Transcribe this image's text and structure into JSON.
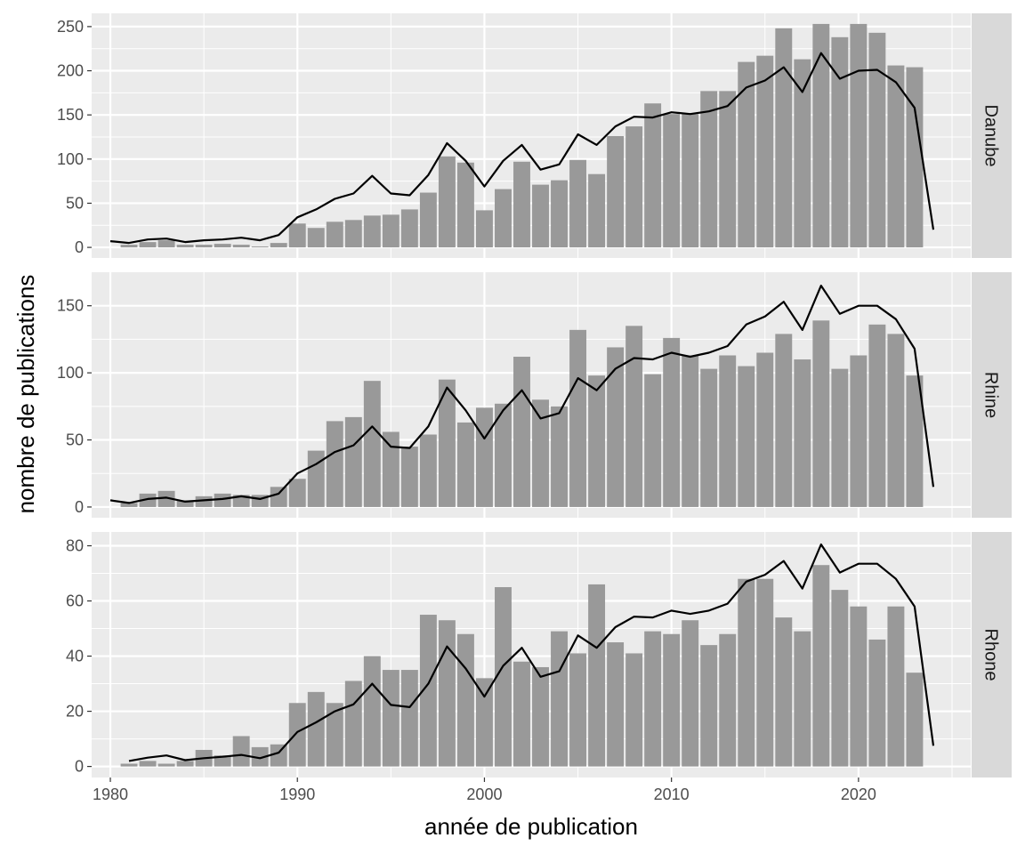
{
  "chart_data": {
    "type": "bar",
    "xlabel": "année de publication",
    "ylabel": "nombre de publications",
    "x_ticks": [
      1980,
      1990,
      2000,
      2010,
      2020
    ],
    "xlim": [
      1979,
      2026
    ],
    "grid": true,
    "facets": [
      {
        "name": "Danube",
        "ylim": [
          -12,
          265
        ],
        "y_ticks": [
          0,
          50,
          100,
          150,
          200,
          250
        ],
        "bars": {
          "x": [
            1981,
            1982,
            1983,
            1984,
            1985,
            1986,
            1987,
            1988,
            1989,
            1990,
            1991,
            1992,
            1993,
            1994,
            1995,
            1996,
            1997,
            1998,
            1999,
            2000,
            2001,
            2002,
            2003,
            2004,
            2005,
            2006,
            2007,
            2008,
            2009,
            2010,
            2011,
            2012,
            2013,
            2014,
            2015,
            2016,
            2017,
            2018,
            2019,
            2020,
            2021,
            2022,
            2023
          ],
          "y": [
            3,
            6,
            8,
            3,
            3,
            4,
            3,
            1,
            5,
            27,
            22,
            29,
            31,
            36,
            37,
            43,
            62,
            103,
            96,
            42,
            66,
            97,
            71,
            76,
            99,
            83,
            126,
            137,
            163,
            151,
            151,
            177,
            177,
            210,
            217,
            248,
            213,
            253,
            238,
            253,
            243,
            206,
            204
          ]
        },
        "line": {
          "x": [
            1980,
            1981,
            1982,
            1983,
            1984,
            1985,
            1986,
            1987,
            1988,
            1989,
            1990,
            1991,
            1992,
            1993,
            1994,
            1995,
            1996,
            1997,
            1998,
            1999,
            2000,
            2001,
            2002,
            2003,
            2004,
            2005,
            2006,
            2007,
            2008,
            2009,
            2010,
            2011,
            2012,
            2013,
            2014,
            2015,
            2016,
            2017,
            2018,
            2019,
            2020,
            2021,
            2022,
            2023,
            2024
          ],
          "y": [
            7,
            5,
            9,
            10,
            6,
            8,
            9,
            11,
            8,
            14,
            34,
            43,
            55,
            61,
            81,
            61,
            59,
            82,
            118,
            98,
            69,
            98,
            116,
            88,
            94,
            128,
            116,
            137,
            148,
            147,
            153,
            151,
            154,
            160,
            181,
            189,
            204,
            176,
            220,
            191,
            200,
            201,
            187,
            158,
            20
          ]
        }
      },
      {
        "name": "Rhine",
        "ylim": [
          -8,
          175
        ],
        "y_ticks": [
          0,
          50,
          100,
          150
        ],
        "bars": {
          "x": [
            1981,
            1982,
            1983,
            1984,
            1985,
            1986,
            1987,
            1988,
            1989,
            1990,
            1991,
            1992,
            1993,
            1994,
            1995,
            1996,
            1997,
            1998,
            1999,
            2000,
            2001,
            2002,
            2003,
            2004,
            2005,
            2006,
            2007,
            2008,
            2009,
            2010,
            2011,
            2012,
            2013,
            2014,
            2015,
            2016,
            2017,
            2018,
            2019,
            2020,
            2021,
            2022,
            2023
          ],
          "y": [
            3,
            10,
            12,
            5,
            8,
            10,
            9,
            9,
            15,
            21,
            42,
            64,
            67,
            94,
            56,
            45,
            54,
            95,
            63,
            74,
            77,
            112,
            80,
            75,
            132,
            98,
            119,
            135,
            99,
            126,
            113,
            103,
            113,
            105,
            115,
            129,
            110,
            139,
            103,
            113,
            136,
            129,
            98
          ]
        },
        "line": {
          "x": [
            1980,
            1981,
            1982,
            1983,
            1984,
            1985,
            1986,
            1987,
            1988,
            1989,
            1990,
            1991,
            1992,
            1993,
            1994,
            1995,
            1996,
            1997,
            1998,
            1999,
            2000,
            2001,
            2002,
            2003,
            2004,
            2005,
            2006,
            2007,
            2008,
            2009,
            2010,
            2011,
            2012,
            2013,
            2014,
            2015,
            2016,
            2017,
            2018,
            2019,
            2020,
            2021,
            2022,
            2023,
            2024
          ],
          "y": [
            5,
            3,
            6,
            7,
            4,
            5,
            6,
            8,
            6,
            10,
            25,
            32,
            41,
            46,
            60,
            45,
            44,
            60,
            89,
            72,
            51,
            72,
            87,
            66,
            70,
            96,
            87,
            103,
            111,
            110,
            115,
            112,
            115,
            120,
            136,
            142,
            153,
            132,
            165,
            144,
            150,
            150,
            140,
            118,
            15
          ]
        }
      },
      {
        "name": "Rhone",
        "ylim": [
          -4,
          85
        ],
        "y_ticks": [
          0,
          20,
          40,
          60,
          80
        ],
        "bars": {
          "x": [
            1981,
            1982,
            1983,
            1984,
            1985,
            1986,
            1987,
            1988,
            1989,
            1990,
            1991,
            1992,
            1993,
            1994,
            1995,
            1996,
            1997,
            1998,
            1999,
            2000,
            2001,
            2002,
            2003,
            2004,
            2005,
            2006,
            2007,
            2008,
            2009,
            2010,
            2011,
            2012,
            2013,
            2014,
            2015,
            2016,
            2017,
            2018,
            2019,
            2020,
            2021,
            2022,
            2023
          ],
          "y": [
            1,
            2,
            1,
            2,
            6,
            4,
            11,
            7,
            8,
            23,
            27,
            23,
            31,
            40,
            35,
            35,
            55,
            53,
            48,
            32,
            65,
            38,
            36,
            49,
            41,
            66,
            45,
            41,
            49,
            48,
            53,
            44,
            48,
            68,
            68,
            54,
            49,
            73,
            64,
            58,
            46,
            58,
            34
          ]
        },
        "line": {
          "x": [
            1981,
            1982,
            1983,
            1984,
            1985,
            1986,
            1987,
            1988,
            1989,
            1990,
            1991,
            1992,
            1993,
            1994,
            1995,
            1996,
            1997,
            1998,
            1999,
            2000,
            2001,
            2002,
            2003,
            2004,
            2005,
            2006,
            2007,
            2008,
            2009,
            2010,
            2011,
            2012,
            2013,
            2014,
            2015,
            2016,
            2017,
            2018,
            2019,
            2020,
            2021,
            2022,
            2023,
            2024
          ],
          "y": [
            2,
            3.2,
            4,
            2.3,
            3,
            3.5,
            4.2,
            3,
            5,
            12.5,
            16,
            20,
            22.5,
            30,
            22.3,
            21.5,
            30,
            43.5,
            35.5,
            25.3,
            36.5,
            43,
            32.5,
            34.5,
            47.5,
            43,
            50.5,
            54.3,
            54,
            56.5,
            55.3,
            56.5,
            59,
            67,
            69.5,
            74.5,
            64.5,
            80.5,
            70.3,
            73.5,
            73.5,
            68,
            58,
            7.5
          ]
        }
      }
    ],
    "colors": {
      "bar": "#999999",
      "line": "#000000",
      "panel_background": "#ebebeb",
      "grid": "#ffffff",
      "strip_background": "#d9d9d9"
    }
  }
}
